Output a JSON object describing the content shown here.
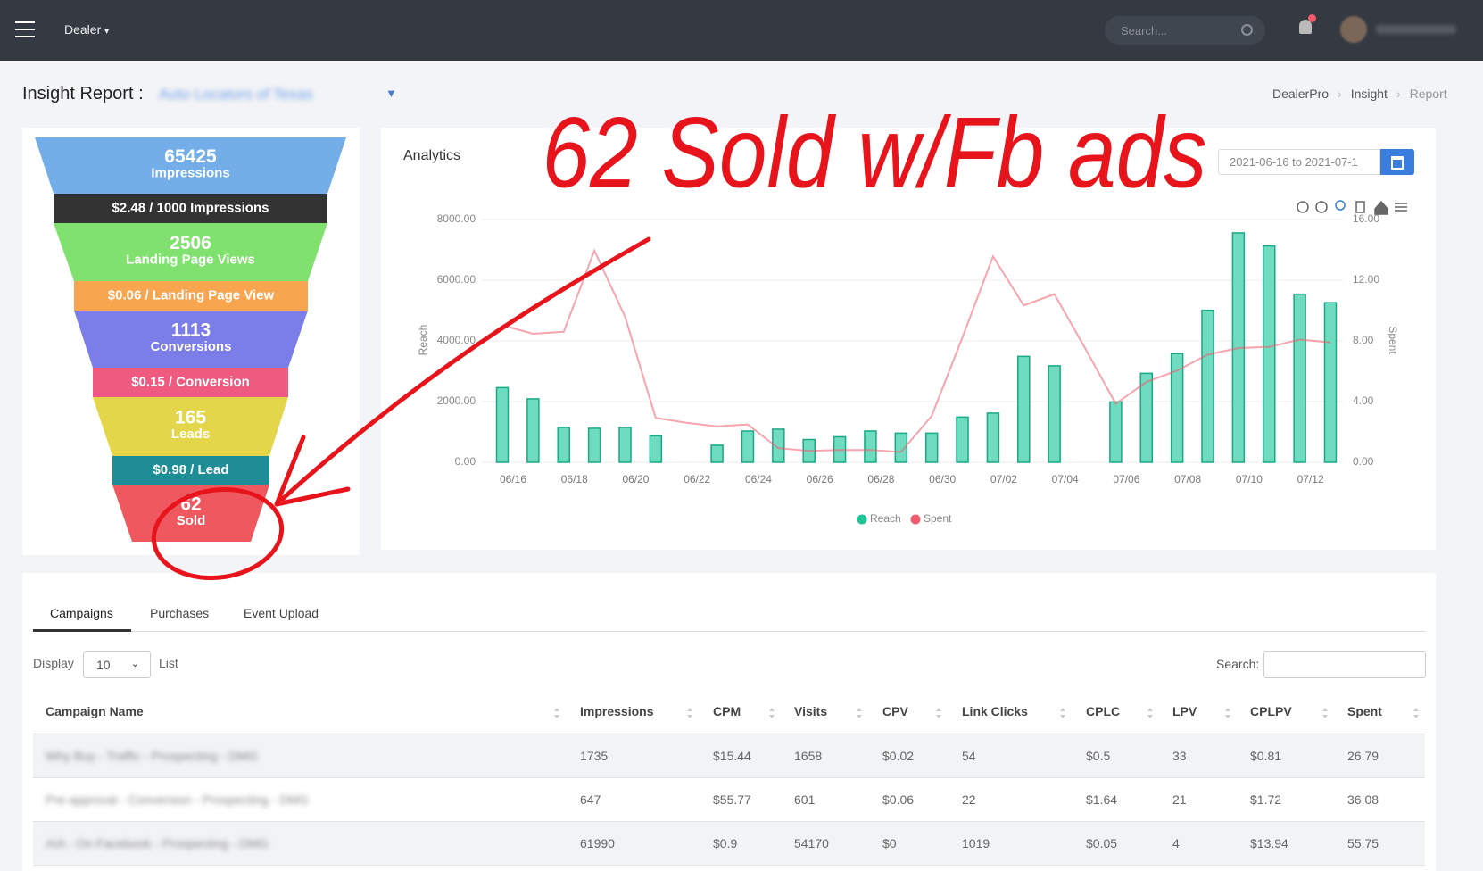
{
  "nav": {
    "menu": "Dealer",
    "search_placeholder": "Search..."
  },
  "header": {
    "title": "Insight Report :",
    "dealer": "Auto Locators of Texas",
    "breadcrumbs": [
      "DealerPro",
      "Insight",
      "Report"
    ]
  },
  "funnel": {
    "stages": [
      {
        "value": "65425",
        "label": "Impressions",
        "color": "#74aee9"
      },
      {
        "value": "2506",
        "label": "Landing Page Views",
        "color": "#80e16f"
      },
      {
        "value": "1113",
        "label": "Conversions",
        "color": "#7b7ee8"
      },
      {
        "value": "165",
        "label": "Leads",
        "color": "#e3d64a"
      },
      {
        "value": "62",
        "label": "Sold",
        "color": "#f0585f"
      }
    ],
    "rates": [
      {
        "text": "$2.48 / 1000 Impressions",
        "color": "#333333"
      },
      {
        "text": "$0.06 / Landing Page View",
        "color": "#f8a54f"
      },
      {
        "text": "$0.15 / Conversion",
        "color": "#ee5a80"
      },
      {
        "text": "$0.98 / Lead",
        "color": "#1f8d96"
      }
    ]
  },
  "analytics": {
    "title": "Analytics",
    "date_range": "2021-06-16 to 2021-07-1",
    "annotation": "62 Sold w/Fb ads"
  },
  "chart_data": {
    "type": "bar",
    "categories": [
      "06/16",
      null,
      "06/18",
      null,
      "06/20",
      null,
      "06/22",
      null,
      "06/24",
      null,
      "06/26",
      null,
      "06/28",
      null,
      "06/30",
      null,
      "07/02",
      null,
      "07/04",
      null,
      "07/06",
      null,
      "07/08",
      null,
      "07/10",
      null,
      "07/12",
      null
    ],
    "series": [
      {
        "name": "Reach",
        "type": "bar",
        "color": "#6fdcc0",
        "values": [
          2460,
          2090,
          1150,
          1120,
          1150,
          870,
          0,
          560,
          1030,
          1090,
          750,
          840,
          1030,
          960,
          960,
          1490,
          1620,
          3490,
          3180,
          0,
          1990,
          2930,
          3580,
          5010,
          7560,
          7130,
          5540,
          5260
        ]
      },
      {
        "name": "Spent",
        "type": "line",
        "axis": "y2",
        "color": "#f25a6e",
        "values": [
          9.03,
          8.47,
          8.6,
          13.95,
          9.6,
          2.93,
          2.6,
          2.37,
          2.49,
          0.93,
          0.75,
          0.81,
          0.81,
          0.68,
          3.05,
          8.22,
          13.57,
          10.34,
          11.08,
          7.53,
          3.86,
          5.29,
          6.04,
          7.1,
          7.53,
          7.6,
          8.09,
          7.9
        ]
      }
    ],
    "ylim": [
      0,
      8000
    ],
    "yticks": [
      {
        "value": 0,
        "label": "0.00"
      },
      {
        "value": 2000,
        "label": "2000.00"
      },
      {
        "value": 4000,
        "label": "4000.00"
      },
      {
        "value": 6000,
        "label": "6000.00"
      },
      {
        "value": 8000,
        "label": "8000.00"
      }
    ],
    "y2lim": [
      0,
      16
    ],
    "y2ticks": [
      {
        "value": 0,
        "label": "0.00"
      },
      {
        "value": 4,
        "label": "4.00"
      },
      {
        "value": 8,
        "label": "8.00"
      },
      {
        "value": 12,
        "label": "12.00"
      },
      {
        "value": 16,
        "label": "16.00"
      }
    ],
    "ylabel": "Reach",
    "y2label": "Spent",
    "grid": true,
    "legend": "bottom"
  },
  "table": {
    "tabs": [
      "Campaigns",
      "Purchases",
      "Event Upload"
    ],
    "display_label": "Display",
    "page_size": "10",
    "list_label": "List",
    "search_label": "Search:",
    "columns": [
      "Campaign Name",
      "Impressions",
      "CPM",
      "Visits",
      "CPV",
      "Link Clicks",
      "CPLC",
      "LPV",
      "CPLPV",
      "Spent"
    ],
    "rows": [
      [
        "Why Buy - Traffic - Prospecting - DMG",
        "1735",
        "$15.44",
        "1658",
        "$0.02",
        "54",
        "$0.5",
        "33",
        "$0.81",
        "26.79"
      ],
      [
        "Pre-approval - Conversion - Prospecting - DMG",
        "647",
        "$55.77",
        "601",
        "$0.06",
        "22",
        "$1.64",
        "21",
        "$1.72",
        "36.08"
      ],
      [
        "AIA - On Facebook - Prospecting - DMG",
        "61990",
        "$0.9",
        "54170",
        "$0",
        "1019",
        "$0.05",
        "4",
        "$13.94",
        "55.75"
      ]
    ]
  }
}
